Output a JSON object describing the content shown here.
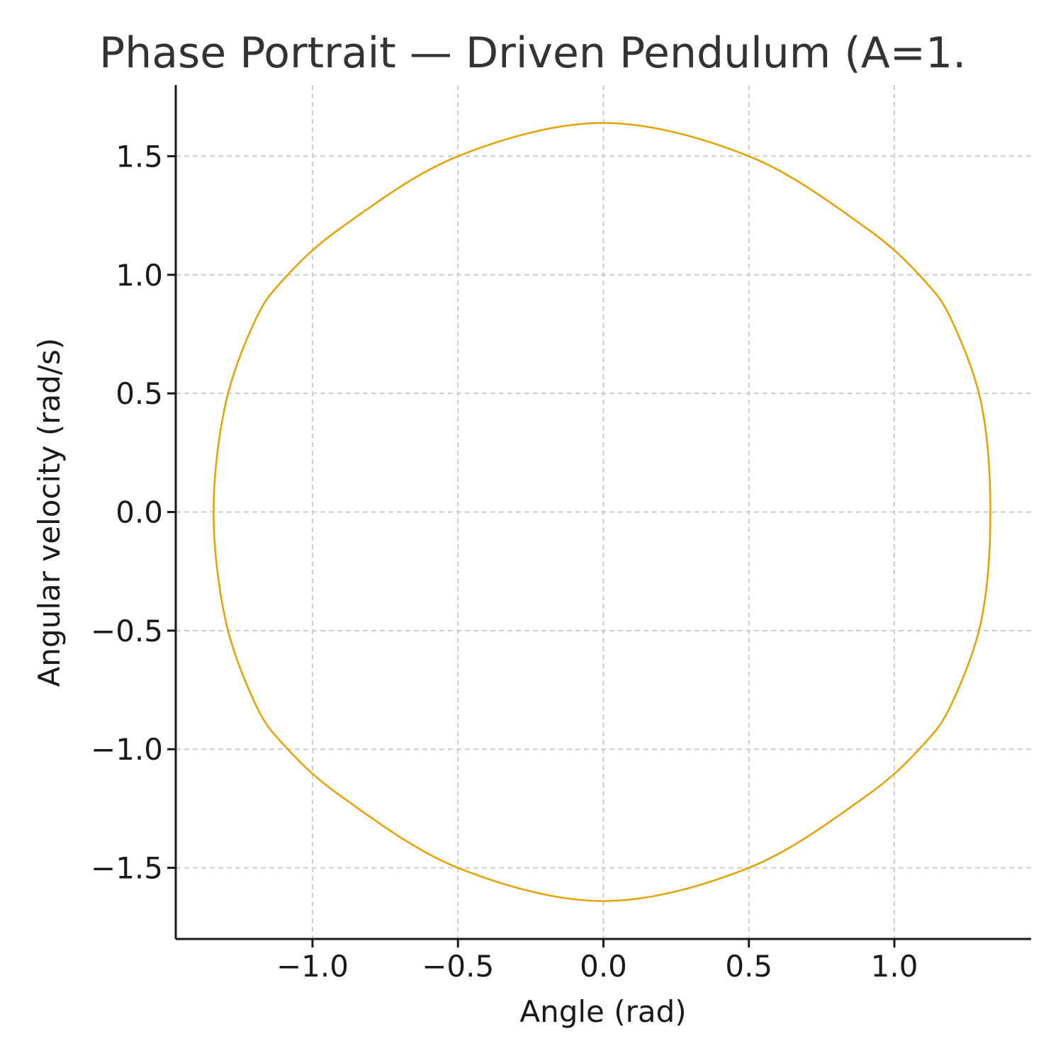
{
  "chart_data": {
    "type": "line",
    "title": "Phase Portrait — Driven Pendulum (A=1.",
    "xlabel": "Angle (rad)",
    "ylabel": "Angular velocity (rad/s)",
    "xlim": [
      -1.47,
      1.47
    ],
    "ylim": [
      -1.8,
      1.8
    ],
    "xticks": [
      -1.0,
      -0.5,
      0.0,
      0.5,
      1.0
    ],
    "xtick_labels": [
      "−1.0",
      "−0.5",
      "0.0",
      "0.5",
      "1.0"
    ],
    "yticks": [
      -1.5,
      -1.0,
      -0.5,
      0.0,
      0.5,
      1.0,
      1.5
    ],
    "ytick_labels": [
      "−1.5",
      "−1.0",
      "−0.5",
      "0.0",
      "0.5",
      "1.0",
      "1.5"
    ],
    "grid": true,
    "series": [
      {
        "color": "#E6A000",
        "x": [
          0.0,
          0.5,
          0.9,
          1.1,
          1.2,
          1.3,
          1.33,
          1.3,
          1.2,
          1.1,
          0.9,
          0.5,
          0.0,
          -0.5,
          -0.9,
          -1.1,
          -1.2,
          -1.3,
          -1.34,
          -1.3,
          -1.2,
          -1.1,
          -0.9,
          -0.5,
          0.0
        ],
        "y": [
          1.64,
          1.5,
          1.2,
          0.98,
          0.8,
          0.45,
          0.0,
          -0.45,
          -0.8,
          -0.98,
          -1.2,
          -1.5,
          -1.64,
          -1.5,
          -1.2,
          -0.98,
          -0.8,
          -0.45,
          0.0,
          0.45,
          0.8,
          0.98,
          1.2,
          1.5,
          1.64
        ]
      }
    ]
  }
}
